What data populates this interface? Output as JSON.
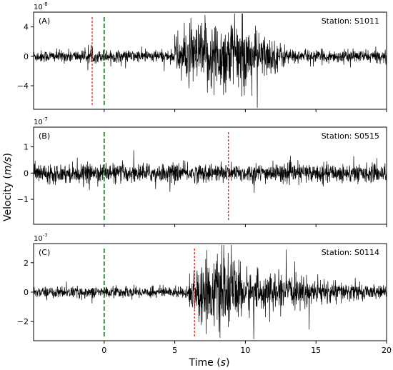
{
  "figure": {
    "ylabel_prefix": "Velocity (",
    "ylabel_unit": "m/s",
    "ylabel_suffix": ")",
    "xlabel_prefix": "Time (",
    "xlabel_unit": "s",
    "xlabel_suffix": ")"
  },
  "chart_data": [
    {
      "type": "line",
      "panel_label": "(A)",
      "station": "Station: S1011",
      "exponent_text": "10",
      "exponent_power": "-8",
      "xlim": [
        -5,
        20
      ],
      "ylim": [
        -7.2,
        6.0
      ],
      "yticks": [
        -4,
        0,
        4
      ],
      "ytick_labels": [
        "−4",
        "0",
        "4"
      ],
      "red_dashed_x": -0.85,
      "green_dashed_x": 0.0,
      "trace_color": "#000000",
      "noise_amplitude": 0.9,
      "envelope": [
        {
          "t": 5.0,
          "t_end": 11.5,
          "peak": 5.5,
          "decay_end": 13.5
        }
      ]
    },
    {
      "type": "line",
      "panel_label": "(B)",
      "station": "Station: S0515",
      "exponent_text": "10",
      "exponent_power": "-7",
      "xlim": [
        -5,
        20
      ],
      "ylim": [
        -1.95,
        1.75
      ],
      "yticks": [
        -1,
        0,
        1
      ],
      "ytick_labels": [
        "−1",
        "0",
        "1"
      ],
      "red_dashed_x": 8.8,
      "green_dashed_x": 0.0,
      "trace_color": "#000000",
      "noise_amplitude": 0.38,
      "envelope": []
    },
    {
      "type": "line",
      "panel_label": "(C)",
      "station": "Station: S0114",
      "exponent_text": "10",
      "exponent_power": "-7",
      "xlim": [
        -5,
        20
      ],
      "ylim": [
        -3.3,
        3.3
      ],
      "yticks": [
        -2,
        0,
        2
      ],
      "ytick_labels": [
        "−2",
        "0",
        "2"
      ],
      "red_dashed_x": 6.4,
      "green_dashed_x": 0.0,
      "trace_color": "#000000",
      "noise_amplitude": 0.4,
      "envelope": [
        {
          "t": 6.0,
          "t_end": 10.5,
          "peak": 2.6,
          "decay_end": 20.0
        }
      ]
    }
  ],
  "x_axis": {
    "ticks": [
      0,
      5,
      10,
      15,
      20
    ],
    "tick_labels": [
      "0",
      "5",
      "10",
      "15",
      "20"
    ]
  },
  "colors": {
    "red_marker": "#e3241f",
    "green_marker": "#1d8a1d",
    "axis": "#000000"
  }
}
